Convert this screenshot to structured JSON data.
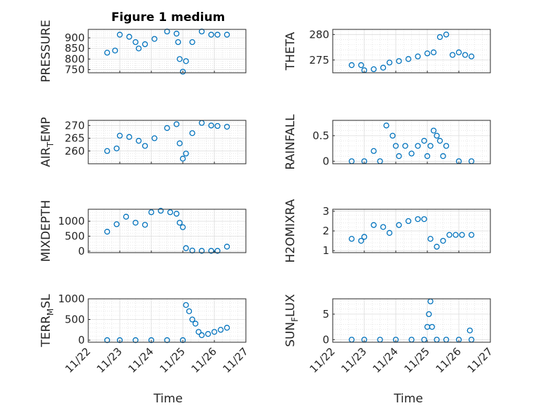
{
  "figure": {
    "title": "Figure 1 medium",
    "xlabel": "Time",
    "marker_color": "#0072BD",
    "axes_color": "#262626",
    "grid_color": "#d9d9d9"
  },
  "chart_data": [
    {
      "type": "scatter",
      "ylabel": "PRESSURE",
      "xlim": [
        0,
        5
      ],
      "ylim": [
        735,
        940
      ],
      "yticks": [
        750,
        800,
        850,
        900
      ],
      "ytick_labels": [
        "750",
        "800",
        "850",
        "900"
      ],
      "xtick_labels": [],
      "xticks": [
        0,
        1,
        2,
        3,
        4,
        5
      ],
      "grid": true,
      "x": [
        0.6,
        0.85,
        1.0,
        1.3,
        1.5,
        1.6,
        1.8,
        2.1,
        2.5,
        2.8,
        2.85,
        2.9,
        3.0,
        3.1,
        3.3,
        3.6,
        3.9,
        4.1,
        4.4
      ],
      "y": [
        830,
        840,
        915,
        905,
        880,
        850,
        870,
        895,
        930,
        920,
        880,
        800,
        740,
        790,
        880,
        930,
        915,
        915,
        915
      ]
    },
    {
      "type": "scatter",
      "ylabel": "THETA",
      "xlim": [
        0,
        5
      ],
      "ylim": [
        272.5,
        281
      ],
      "yticks": [
        275,
        280
      ],
      "ytick_labels": [
        "275",
        "280"
      ],
      "xtick_labels": [],
      "xticks": [
        0,
        1,
        2,
        3,
        4,
        5
      ],
      "grid": true,
      "x": [
        0.6,
        0.9,
        1.0,
        1.3,
        1.6,
        1.8,
        2.1,
        2.4,
        2.7,
        3.0,
        3.2,
        3.4,
        3.6,
        3.8,
        4.0,
        4.2,
        4.4
      ],
      "y": [
        274.0,
        274.0,
        273.0,
        273.2,
        273.5,
        274.5,
        274.8,
        275.2,
        275.7,
        276.3,
        276.5,
        279.5,
        280.0,
        276.0,
        276.5,
        276.0,
        275.7
      ]
    },
    {
      "type": "scatter",
      "ylabel": "AIR_TEMP",
      "ylabel_parts": [
        "AIR",
        "T",
        "EMP"
      ],
      "xlim": [
        0,
        5
      ],
      "ylim": [
        255,
        272
      ],
      "yticks": [
        260,
        265,
        270
      ],
      "ytick_labels": [
        "260",
        "265",
        "270"
      ],
      "xtick_labels": [],
      "xticks": [
        0,
        1,
        2,
        3,
        4,
        5
      ],
      "grid": true,
      "x": [
        0.6,
        0.9,
        1.0,
        1.3,
        1.6,
        1.8,
        2.1,
        2.5,
        2.8,
        2.9,
        3.0,
        3.1,
        3.3,
        3.6,
        3.9,
        4.1,
        4.4
      ],
      "y": [
        260.0,
        261.0,
        266.0,
        265.5,
        264.0,
        262.0,
        265.0,
        269.0,
        270.5,
        263.0,
        257.0,
        259.0,
        267.0,
        271.0,
        270.0,
        269.8,
        269.5
      ]
    },
    {
      "type": "scatter",
      "ylabel": "RAINFALL",
      "xlim": [
        0,
        5
      ],
      "ylim": [
        -0.05,
        0.8
      ],
      "yticks": [
        0,
        0.5
      ],
      "ytick_labels": [
        "0",
        "0.5"
      ],
      "xtick_labels": [],
      "xticks": [
        0,
        1,
        2,
        3,
        4,
        5
      ],
      "grid": true,
      "x": [
        0.6,
        1.0,
        1.3,
        1.5,
        1.7,
        1.9,
        2.0,
        2.1,
        2.3,
        2.5,
        2.7,
        2.9,
        3.0,
        3.1,
        3.2,
        3.3,
        3.4,
        3.5,
        3.6,
        4.0,
        4.4
      ],
      "y": [
        0,
        0,
        0.2,
        0,
        0.7,
        0.5,
        0.3,
        0.1,
        0.3,
        0.15,
        0.3,
        0.4,
        0.1,
        0.3,
        0.6,
        0.5,
        0.4,
        0.1,
        0.3,
        0,
        0
      ]
    },
    {
      "type": "scatter",
      "ylabel": "MIXDEPTH",
      "xlim": [
        0,
        5
      ],
      "ylim": [
        -50,
        1400
      ],
      "yticks": [
        0,
        500,
        1000
      ],
      "ytick_labels": [
        "0",
        "500",
        "1000"
      ],
      "xtick_labels": [],
      "xticks": [
        0,
        1,
        2,
        3,
        4,
        5
      ],
      "grid": true,
      "x": [
        0.6,
        0.9,
        1.2,
        1.5,
        1.8,
        2.0,
        2.3,
        2.6,
        2.8,
        2.9,
        3.0,
        3.1,
        3.3,
        3.6,
        3.9,
        4.1,
        4.4
      ],
      "y": [
        650,
        900,
        1150,
        950,
        880,
        1300,
        1350,
        1300,
        1250,
        950,
        800,
        100,
        20,
        10,
        10,
        10,
        150
      ]
    },
    {
      "type": "scatter",
      "ylabel": "H2OMIXRA",
      "xlim": [
        0,
        5
      ],
      "ylim": [
        0.9,
        3.1
      ],
      "yticks": [
        1,
        2,
        3
      ],
      "ytick_labels": [
        "1",
        "2",
        "3"
      ],
      "xtick_labels": [],
      "xticks": [
        0,
        1,
        2,
        3,
        4,
        5
      ],
      "grid": true,
      "x": [
        0.6,
        0.9,
        1.0,
        1.3,
        1.6,
        1.8,
        2.1,
        2.4,
        2.7,
        2.9,
        3.1,
        3.3,
        3.5,
        3.7,
        3.9,
        4.1,
        4.4
      ],
      "y": [
        1.6,
        1.5,
        1.7,
        2.3,
        2.2,
        1.9,
        2.3,
        2.5,
        2.6,
        2.6,
        1.6,
        1.2,
        1.5,
        1.8,
        1.8,
        1.8,
        1.8
      ]
    },
    {
      "type": "scatter",
      "ylabel": "TERR_MSL",
      "ylabel_parts": [
        "TERR",
        "M",
        "SL"
      ],
      "xlim": [
        0,
        5
      ],
      "ylim": [
        -50,
        1000
      ],
      "yticks": [
        0,
        500,
        1000
      ],
      "ytick_labels": [
        "0",
        "500",
        "1000"
      ],
      "xticks": [
        0,
        1,
        2,
        3,
        4,
        5
      ],
      "xtick_labels": [
        "11/22",
        "11/23",
        "11/24",
        "11/25",
        "11/26",
        "11/27"
      ],
      "grid": true,
      "x": [
        0.6,
        1.0,
        1.5,
        2.0,
        2.5,
        3.0,
        3.1,
        3.2,
        3.3,
        3.4,
        3.5,
        3.6,
        3.8,
        4.0,
        4.2,
        4.4
      ],
      "y": [
        0,
        0,
        0,
        0,
        0,
        0,
        850,
        700,
        500,
        400,
        200,
        120,
        150,
        200,
        250,
        300
      ]
    },
    {
      "type": "scatter",
      "ylabel": "SUN_FLUX",
      "ylabel_parts": [
        "SUN",
        "F",
        "LUX"
      ],
      "xlim": [
        0,
        5
      ],
      "ylim": [
        -0.5,
        8
      ],
      "yticks": [
        0,
        5
      ],
      "ytick_labels": [
        "0",
        "5"
      ],
      "xticks": [
        0,
        1,
        2,
        3,
        4,
        5
      ],
      "xtick_labels": [
        "11/22",
        "11/23",
        "11/24",
        "11/25",
        "11/26",
        "11/27"
      ],
      "grid": true,
      "x": [
        0.6,
        1.0,
        1.5,
        2.0,
        2.5,
        2.9,
        3.0,
        3.05,
        3.1,
        3.15,
        3.3,
        3.6,
        4.0,
        4.35,
        4.4
      ],
      "y": [
        0,
        0,
        0,
        0,
        0,
        0,
        2.5,
        5,
        7.5,
        2.5,
        0,
        0,
        0,
        1.8,
        0
      ]
    }
  ]
}
